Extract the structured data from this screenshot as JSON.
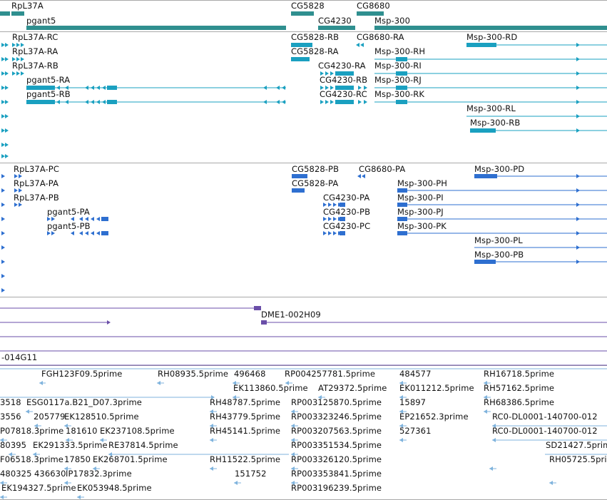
{
  "colors": {
    "gene": "#2f8f8f",
    "transcript": "#1aa0c0",
    "protein": "#2e6fd0",
    "clone": "#6a4ea8",
    "est": "#7fb3dd",
    "divider": "#a9a9a9"
  },
  "genes": {
    "labels": [
      "RpL37A",
      "pgant5",
      "CG5828",
      "CG4230",
      "CG8680",
      "Msp-300"
    ]
  },
  "transcripts": {
    "labels": [
      "RpL37A-RC",
      "RpL37A-RA",
      "RpL37A-RB",
      "pgant5-RA",
      "pgant5-RB",
      "CG5828-RB",
      "CG5828-RA",
      "CG4230-RA",
      "CG4230-RB",
      "CG4230-RC",
      "CG8680-RA",
      "Msp-300-RD",
      "Msp-300-RH",
      "Msp-300-RI",
      "Msp-300-RJ",
      "Msp-300-RK",
      "Msp-300-RL",
      "Msp-300-RB"
    ]
  },
  "proteins": {
    "labels": [
      "RpL37A-PC",
      "RpL37A-PA",
      "RpL37A-PB",
      "pgant5-PA",
      "pgant5-PB",
      "CG5828-PB",
      "CG5828-PA",
      "CG4230-PA",
      "CG4230-PB",
      "CG4230-PC",
      "CG8680-PA",
      "Msp-300-PD",
      "Msp-300-PH",
      "Msp-300-PI",
      "Msp-300-PJ",
      "Msp-300-PK",
      "Msp-300-PL",
      "Msp-300-PB"
    ]
  },
  "clones": {
    "labels": [
      "DME1-002H09",
      "-014G11"
    ]
  },
  "ests": {
    "labels": [
      "FGH123F09.5prime",
      "RH08935.5prime",
      "496468",
      "RP004257781.5prime",
      "484577",
      "RH16718.5prime",
      "EK113860.5prime",
      "AT29372.5prime",
      "EK011212.5prime",
      "RH57162.5prime",
      "3518",
      "ESG0117a.B21_D07.3prime",
      "RH48787.5prime",
      "RP003125870.5prime",
      "15897",
      "RH68386.5prime",
      "3556",
      "205779",
      "EK128510.5prime",
      "RH43779.5prime",
      "RP003323246.5prime",
      "EP21652.3prime",
      "RC0-DL0001-140700-012",
      "P07818.3prime",
      "181610",
      "EK237108.5prime",
      "RH45141.5prime",
      "RP003207563.5prime",
      "527361",
      "RC0-DL0001-140700-012",
      "80395",
      "EK291333.5prime",
      "RE37814.5prime",
      "RP003351534.5prime",
      "SD21427.5prime",
      "F06518.3prime",
      "17850",
      "EK268701.5prime",
      "RH11522.5prime",
      "RP003326120.5prime",
      "RH05725.5prime",
      "480325",
      "436630",
      "IP17832.3prime",
      "151752",
      "RP003353841.5prime",
      "EK194327.5prime",
      "EK053948.5prime",
      "RP003196239.5prime"
    ]
  }
}
